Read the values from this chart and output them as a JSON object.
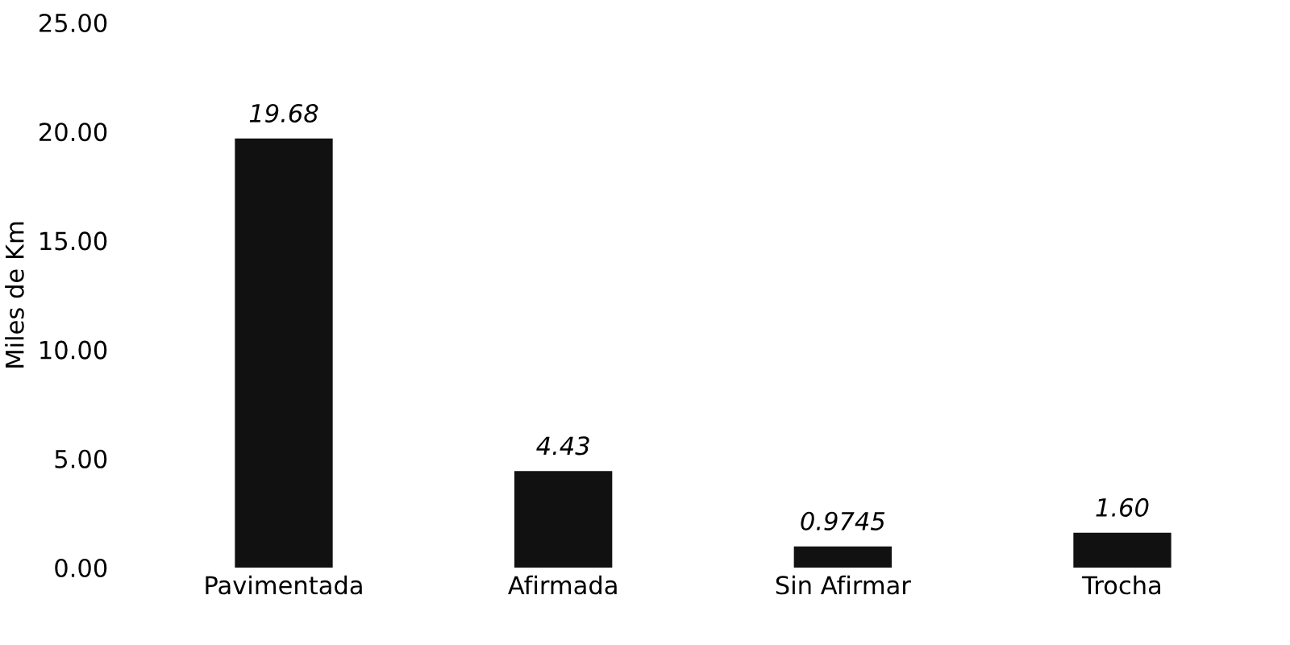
{
  "chart_data": {
    "type": "bar",
    "ylabel": "Miles de Km",
    "categories": [
      "Pavimentada",
      "Afirmada",
      "Sin Afirmar",
      "Trocha"
    ],
    "values": [
      19.68,
      4.43,
      0.9745,
      1.6
    ],
    "value_labels": [
      "19.68",
      "4.43",
      "0.9745",
      "1.60"
    ],
    "color": "#111111",
    "ylim": [
      0,
      25
    ],
    "yticks": [
      {
        "value": 0,
        "label": "0.00"
      },
      {
        "value": 5,
        "label": "5.00"
      },
      {
        "value": 10,
        "label": "10.00"
      },
      {
        "value": 15,
        "label": "15.00"
      },
      {
        "value": 20,
        "label": "20.00"
      },
      {
        "value": 25,
        "label": "25.00"
      }
    ],
    "grid": false
  }
}
